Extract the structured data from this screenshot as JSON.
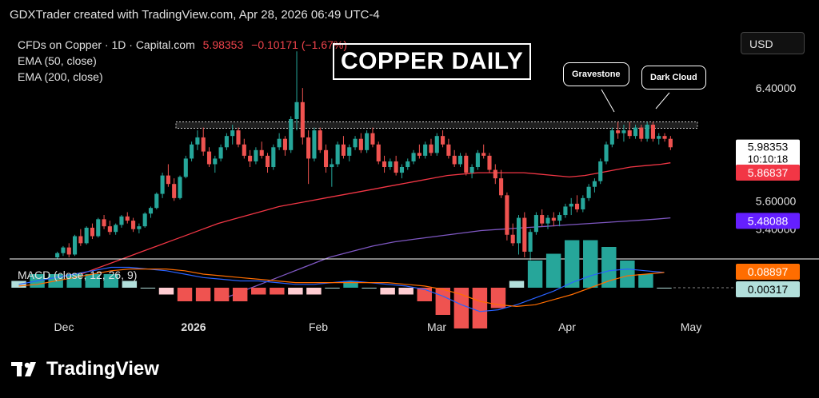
{
  "header": {
    "text": "GDXTrader created with TradingView.com, Apr 28, 2026 06:49 UTC-4"
  },
  "legend": {
    "symbol": "CFDs on Copper · 1D · Capital.com",
    "price": "5.98353",
    "change": "−0.10171 (−1.67%)",
    "ema50": "EMA (50, close)",
    "ema200": "EMA (200, close)"
  },
  "currency_button": "USD",
  "title": "COPPER DAILY",
  "callouts": {
    "gravestone": "Gravestone",
    "dark_cloud": "Dark Cloud"
  },
  "macd_label": "MACD (close, 12, 26, 9)",
  "footer": {
    "brand": "TradingView"
  },
  "colors": {
    "up": "#26a69a",
    "down": "#ef5350",
    "ema50": "#f23645",
    "ema200": "#7e57c2",
    "macd": "#2962ff",
    "signal": "#ff6d00",
    "background": "#000000"
  },
  "chart_data": [
    {
      "type": "candlestick",
      "title": "COPPER DAILY",
      "x_ticks": [
        "Dec",
        "2026",
        "Feb",
        "Mar",
        "Apr",
        "May"
      ],
      "y_ticks": [
        6.4,
        5.6,
        5.4
      ],
      "ylim": [
        5.2,
        6.65
      ],
      "price_labels": {
        "last": "5.98353",
        "countdown": "10:10:18",
        "ema50": "5.86837",
        "ema200": "5.48088"
      },
      "resistance_zone": [
        6.12,
        6.16
      ],
      "candles": [
        [
          5.2,
          5.24,
          5.19,
          5.23
        ],
        [
          5.23,
          5.28,
          5.21,
          5.27
        ],
        [
          5.27,
          5.3,
          5.2,
          5.22
        ],
        [
          5.22,
          5.36,
          5.21,
          5.35
        ],
        [
          5.35,
          5.4,
          5.28,
          5.3
        ],
        [
          5.3,
          5.42,
          5.29,
          5.41
        ],
        [
          5.41,
          5.44,
          5.33,
          5.35
        ],
        [
          5.35,
          5.48,
          5.34,
          5.47
        ],
        [
          5.47,
          5.5,
          5.4,
          5.42
        ],
        [
          5.42,
          5.46,
          5.36,
          5.38
        ],
        [
          5.38,
          5.44,
          5.36,
          5.43
        ],
        [
          5.43,
          5.5,
          5.41,
          5.49
        ],
        [
          5.49,
          5.52,
          5.44,
          5.46
        ],
        [
          5.46,
          5.48,
          5.38,
          5.4
        ],
        [
          5.4,
          5.44,
          5.37,
          5.42
        ],
        [
          5.42,
          5.52,
          5.41,
          5.51
        ],
        [
          5.51,
          5.56,
          5.48,
          5.55
        ],
        [
          5.55,
          5.66,
          5.54,
          5.65
        ],
        [
          5.65,
          5.8,
          5.62,
          5.78
        ],
        [
          5.78,
          5.86,
          5.7,
          5.72
        ],
        [
          5.72,
          5.76,
          5.6,
          5.62
        ],
        [
          5.62,
          5.78,
          5.61,
          5.77
        ],
        [
          5.77,
          5.92,
          5.76,
          5.9
        ],
        [
          5.9,
          6.02,
          5.88,
          6.0
        ],
        [
          6.0,
          6.1,
          5.96,
          6.05
        ],
        [
          6.05,
          6.12,
          5.92,
          5.95
        ],
        [
          5.95,
          5.98,
          5.84,
          5.86
        ],
        [
          5.86,
          5.92,
          5.8,
          5.9
        ],
        [
          5.9,
          6.0,
          5.88,
          5.98
        ],
        [
          5.98,
          6.08,
          5.96,
          6.06
        ],
        [
          6.06,
          6.14,
          6.0,
          6.1
        ],
        [
          6.1,
          6.12,
          5.98,
          6.0
        ],
        [
          6.0,
          6.04,
          5.9,
          5.92
        ],
        [
          5.92,
          5.96,
          5.84,
          5.88
        ],
        [
          5.88,
          5.98,
          5.86,
          5.96
        ],
        [
          5.96,
          6.02,
          5.9,
          5.92
        ],
        [
          5.92,
          5.94,
          5.8,
          5.84
        ],
        [
          5.84,
          6.0,
          5.82,
          5.98
        ],
        [
          5.98,
          6.08,
          5.96,
          6.04
        ],
        [
          6.04,
          6.06,
          5.92,
          5.96
        ],
        [
          5.96,
          6.2,
          5.94,
          6.18
        ],
        [
          6.18,
          6.66,
          6.1,
          6.3
        ],
        [
          6.3,
          6.4,
          6.0,
          6.05
        ],
        [
          6.05,
          6.1,
          5.72,
          5.9
        ],
        [
          5.9,
          6.12,
          5.88,
          6.1
        ],
        [
          6.1,
          6.12,
          5.94,
          5.96
        ],
        [
          5.96,
          6.0,
          5.8,
          5.84
        ],
        [
          5.84,
          5.9,
          5.7,
          5.86
        ],
        [
          5.86,
          6.02,
          5.84,
          6.0
        ],
        [
          6.0,
          6.06,
          5.9,
          5.92
        ],
        [
          5.92,
          6.0,
          5.88,
          5.98
        ],
        [
          5.98,
          6.06,
          5.96,
          6.04
        ],
        [
          6.04,
          6.08,
          5.94,
          5.96
        ],
        [
          5.96,
          6.1,
          5.94,
          6.08
        ],
        [
          6.08,
          6.12,
          5.98,
          6.0
        ],
        [
          6.0,
          6.02,
          5.86,
          5.88
        ],
        [
          5.88,
          5.92,
          5.8,
          5.84
        ],
        [
          5.84,
          5.9,
          5.82,
          5.88
        ],
        [
          5.88,
          5.92,
          5.78,
          5.8
        ],
        [
          5.8,
          5.86,
          5.76,
          5.84
        ],
        [
          5.84,
          5.9,
          5.82,
          5.88
        ],
        [
          5.88,
          5.96,
          5.86,
          5.94
        ],
        [
          5.94,
          6.0,
          5.9,
          5.92
        ],
        [
          5.92,
          6.02,
          5.9,
          6.0
        ],
        [
          6.0,
          6.04,
          5.92,
          5.94
        ],
        [
          5.94,
          6.08,
          5.92,
          6.06
        ],
        [
          6.06,
          6.1,
          5.98,
          6.0
        ],
        [
          6.0,
          6.04,
          5.9,
          5.92
        ],
        [
          5.92,
          5.96,
          5.84,
          5.86
        ],
        [
          5.86,
          5.94,
          5.84,
          5.92
        ],
        [
          5.92,
          5.94,
          5.78,
          5.8
        ],
        [
          5.8,
          5.86,
          5.76,
          5.84
        ],
        [
          5.84,
          5.96,
          5.82,
          5.94
        ],
        [
          5.94,
          6.0,
          5.9,
          5.92
        ],
        [
          5.92,
          5.94,
          5.8,
          5.82
        ],
        [
          5.82,
          5.86,
          5.72,
          5.76
        ],
        [
          5.76,
          5.82,
          5.62,
          5.64
        ],
        [
          5.64,
          5.66,
          5.32,
          5.36
        ],
        [
          5.36,
          5.44,
          5.28,
          5.3
        ],
        [
          5.3,
          5.5,
          5.22,
          5.48
        ],
        [
          5.48,
          5.52,
          5.2,
          5.24
        ],
        [
          5.24,
          5.4,
          5.18,
          5.38
        ],
        [
          5.38,
          5.52,
          5.36,
          5.5
        ],
        [
          5.5,
          5.54,
          5.42,
          5.44
        ],
        [
          5.44,
          5.5,
          5.4,
          5.48
        ],
        [
          5.48,
          5.52,
          5.42,
          5.46
        ],
        [
          5.46,
          5.52,
          5.42,
          5.5
        ],
        [
          5.5,
          5.58,
          5.48,
          5.56
        ],
        [
          5.56,
          5.62,
          5.5,
          5.58
        ],
        [
          5.58,
          5.64,
          5.52,
          5.54
        ],
        [
          5.54,
          5.64,
          5.52,
          5.62
        ],
        [
          5.62,
          5.72,
          5.6,
          5.7
        ],
        [
          5.7,
          5.76,
          5.66,
          5.74
        ],
        [
          5.74,
          5.9,
          5.72,
          5.88
        ],
        [
          5.88,
          6.02,
          5.86,
          6.0
        ],
        [
          6.0,
          6.12,
          5.98,
          6.1
        ],
        [
          6.1,
          6.16,
          6.04,
          6.08
        ],
        [
          6.08,
          6.14,
          6.02,
          6.1
        ],
        [
          6.1,
          6.16,
          6.04,
          6.06
        ],
        [
          6.06,
          6.14,
          6.04,
          6.12
        ],
        [
          6.12,
          6.14,
          6.02,
          6.04
        ],
        [
          6.04,
          6.16,
          6.02,
          6.14
        ],
        [
          6.14,
          6.16,
          6.02,
          6.04
        ],
        [
          6.04,
          6.08,
          6.0,
          6.06
        ],
        [
          6.06,
          6.08,
          6.02,
          6.04
        ],
        [
          6.04,
          6.06,
          5.96,
          5.98
        ]
      ],
      "ema50": [
        5.08,
        5.12,
        5.16,
        5.2,
        5.24,
        5.28,
        5.32,
        5.36,
        5.4,
        5.44,
        5.47,
        5.5,
        5.53,
        5.56,
        5.58,
        5.6,
        5.62,
        5.64,
        5.66,
        5.68,
        5.7,
        5.72,
        5.74,
        5.76,
        5.78,
        5.79,
        5.8,
        5.8,
        5.8,
        5.8,
        5.79,
        5.78,
        5.77,
        5.78,
        5.8,
        5.82,
        5.84,
        5.85,
        5.86,
        5.87
      ],
      "ema200": [
        4.9,
        4.96,
        5.02,
        5.08,
        5.14,
        5.2,
        5.24,
        5.28,
        5.31,
        5.33,
        5.35,
        5.37,
        5.39,
        5.4,
        5.41,
        5.42,
        5.43,
        5.44,
        5.45,
        5.46,
        5.47,
        5.48
      ],
      "macd": {
        "label": "MACD (close, 12, 26, 9)",
        "macd_value": "0.08897",
        "hist_value": "0.00317",
        "macd": [
          0.02,
          0.04,
          0.06,
          0.08,
          0.1,
          0.12,
          0.12,
          0.11,
          0.1,
          0.08,
          0.06,
          0.05,
          0.04,
          0.04,
          0.03,
          0.02,
          0.02,
          0.03,
          0.04,
          0.03,
          0.02,
          0.01,
          -0.01,
          -0.05,
          -0.1,
          -0.14,
          -0.13,
          -0.1,
          -0.06,
          -0.02,
          0.03,
          0.07,
          0.1,
          0.11,
          0.1,
          0.09
        ],
        "signal": [
          0.01,
          0.02,
          0.04,
          0.06,
          0.08,
          0.1,
          0.11,
          0.11,
          0.11,
          0.1,
          0.08,
          0.07,
          0.06,
          0.05,
          0.04,
          0.03,
          0.03,
          0.03,
          0.03,
          0.03,
          0.03,
          0.02,
          0.01,
          -0.01,
          -0.04,
          -0.08,
          -0.1,
          -0.11,
          -0.1,
          -0.07,
          -0.04,
          0.0,
          0.04,
          0.07,
          0.08,
          0.09
        ]
      }
    }
  ]
}
